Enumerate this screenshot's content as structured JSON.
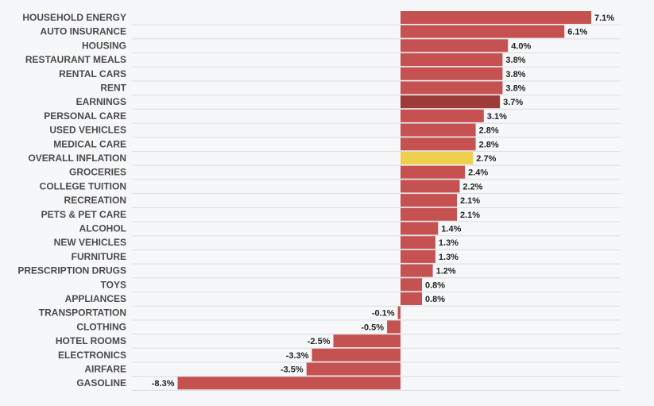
{
  "chart_data": {
    "type": "bar",
    "orientation": "horizontal",
    "title": "",
    "xlabel": "",
    "ylabel": "",
    "grid": true,
    "value_suffix": "%",
    "xlim": [
      -8.3,
      7.1
    ],
    "categories": [
      "HOUSEHOLD ENERGY",
      "AUTO INSURANCE",
      "HOUSING",
      "RESTAURANT MEALS",
      "RENTAL CARS",
      "RENT",
      "EARNINGS",
      "PERSONAL CARE",
      "USED VEHICLES",
      "MEDICAL CARE",
      "OVERALL INFLATION",
      "GROCERIES",
      "COLLEGE TUITION",
      "RECREATION",
      "PETS & PET CARE",
      "ALCOHOL",
      "NEW VEHICLES",
      "FURNITURE",
      "PRESCRIPTION DRUGS",
      "TOYS",
      "APPLIANCES",
      "TRANSPORTATION",
      "CLOTHING",
      "HOTEL ROOMS",
      "ELECTRONICS",
      "AIRFARE",
      "GASOLINE"
    ],
    "values": [
      7.1,
      6.1,
      4.0,
      3.8,
      3.8,
      3.8,
      3.7,
      3.1,
      2.8,
      2.8,
      2.7,
      2.4,
      2.2,
      2.1,
      2.1,
      1.4,
      1.3,
      1.3,
      1.2,
      0.8,
      0.8,
      -0.1,
      -0.5,
      -2.5,
      -3.3,
      -3.5,
      -8.3
    ],
    "value_labels": [
      "7.1%",
      "6.1%",
      "4.0%",
      "3.8%",
      "3.8%",
      "3.8%",
      "3.7%",
      "3.1%",
      "2.8%",
      "2.8%",
      "2.7%",
      "2.4%",
      "2.2%",
      "2.1%",
      "2.1%",
      "1.4%",
      "1.3%",
      "1.3%",
      "1.2%",
      "0.8%",
      "0.8%",
      "-0.1%",
      "-0.5%",
      "-2.5%",
      "-3.3%",
      "-3.5%",
      "-8.3%"
    ],
    "colors": {
      "default": "#c55250",
      "EARNINGS": "#9e3a38",
      "OVERALL INFLATION": "#efcf4e"
    }
  }
}
